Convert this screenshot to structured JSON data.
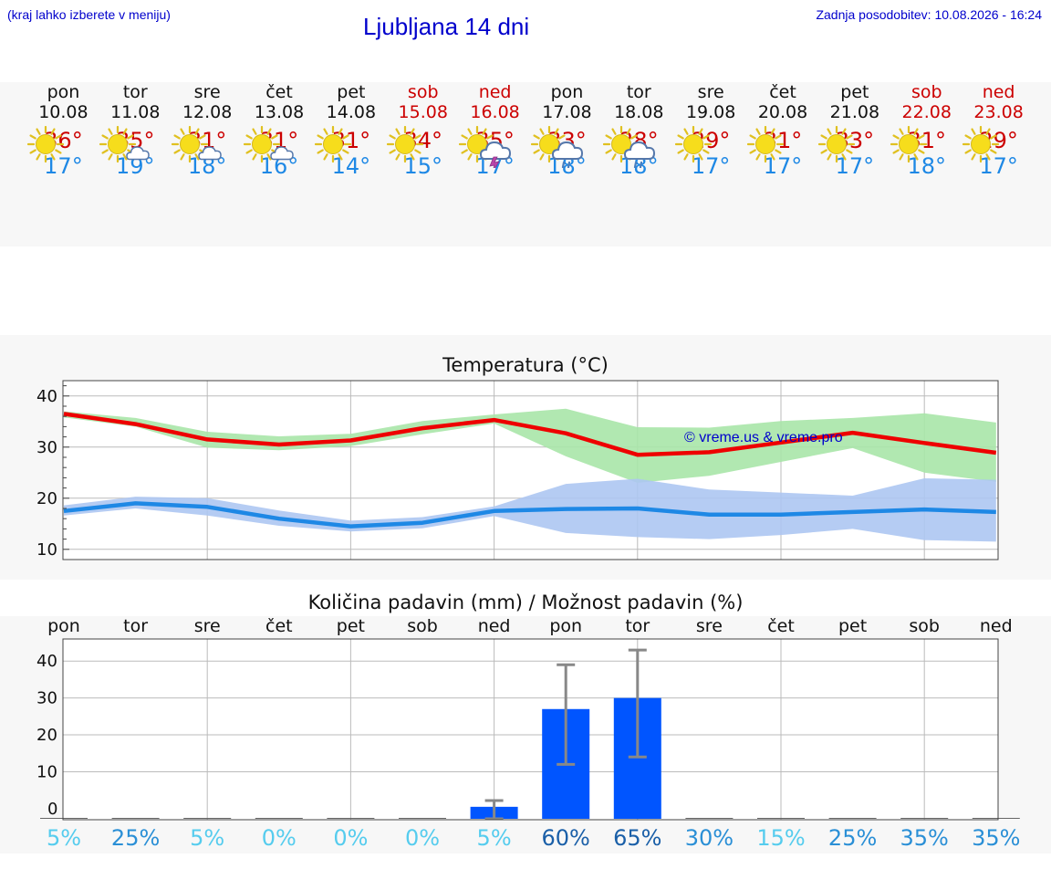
{
  "header": {
    "hint": "(kraj lahko izberete v meniju)",
    "title": "Ljubljana 14 dni",
    "updated": "Zadnja posodobitev: 10.08.2026 - 16:24"
  },
  "days": [
    {
      "name": "pon",
      "date": "10.08",
      "icon": "sun-icon",
      "tmax": "36°",
      "tmin": "17°",
      "weekend": false
    },
    {
      "name": "tor",
      "date": "11.08",
      "icon": "sun-cloud-icon",
      "tmax": "35°",
      "tmin": "19°",
      "weekend": false
    },
    {
      "name": "sre",
      "date": "12.08",
      "icon": "sun-cloud-icon",
      "tmax": "31°",
      "tmin": "18°",
      "weekend": false
    },
    {
      "name": "čet",
      "date": "13.08",
      "icon": "sun-cloud-icon",
      "tmax": "31°",
      "tmin": "16°",
      "weekend": false
    },
    {
      "name": "pet",
      "date": "14.08",
      "icon": "sun-icon",
      "tmax": "31°",
      "tmin": "14°",
      "weekend": false
    },
    {
      "name": "sob",
      "date": "15.08",
      "icon": "sun-icon",
      "tmax": "34°",
      "tmin": "15°",
      "weekend": true
    },
    {
      "name": "ned",
      "date": "16.08",
      "icon": "sun-thunder-icon",
      "tmax": "35°",
      "tmin": "17°",
      "weekend": true
    },
    {
      "name": "pon",
      "date": "17.08",
      "icon": "sun-rain-icon",
      "tmax": "33°",
      "tmin": "18°",
      "weekend": false
    },
    {
      "name": "tor",
      "date": "18.08",
      "icon": "sun-rain-icon",
      "tmax": "28°",
      "tmin": "18°",
      "weekend": false
    },
    {
      "name": "sre",
      "date": "19.08",
      "icon": "sun-icon",
      "tmax": "29°",
      "tmin": "17°",
      "weekend": false
    },
    {
      "name": "čet",
      "date": "20.08",
      "icon": "sun-icon",
      "tmax": "31°",
      "tmin": "17°",
      "weekend": false
    },
    {
      "name": "pet",
      "date": "21.08",
      "icon": "sun-icon",
      "tmax": "33°",
      "tmin": "17°",
      "weekend": false
    },
    {
      "name": "sob",
      "date": "22.08",
      "icon": "sun-icon",
      "tmax": "31°",
      "tmin": "18°",
      "weekend": true
    },
    {
      "name": "ned",
      "date": "23.08",
      "icon": "sun-icon",
      "tmax": "29°",
      "tmin": "17°",
      "weekend": true
    }
  ],
  "colors": {
    "max_line": "#ee0000",
    "max_band": "#a8e6a8",
    "min_line": "#1e88e5",
    "min_band": "#adc6f2",
    "bar": "#0055ff",
    "error": "#888888",
    "pct_low": "#55ccee",
    "pct_mid": "#2a8fd6",
    "pct_high": "#1a5fa8"
  },
  "chart_data": [
    {
      "type": "line",
      "title": "Temperatura (°C)",
      "watermark": "© vreme.us & vreme.pro",
      "ylim": [
        8,
        43
      ],
      "yticks": [
        10,
        20,
        30,
        40
      ],
      "x": [
        0,
        1,
        2,
        3,
        4,
        5,
        6,
        7,
        8,
        9,
        10,
        11,
        12,
        13
      ],
      "series": [
        {
          "values": [
            36.5,
            34.5,
            31.5,
            30.5,
            31.3,
            33.7,
            35.3,
            32.7,
            28.5,
            29.0,
            30.9,
            32.8,
            30.8,
            28.9
          ],
          "band_low": [
            35.8,
            34.0,
            29.9,
            29.4,
            30.2,
            32.5,
            34.6,
            28.2,
            23.0,
            24.4,
            27.1,
            29.8,
            25.0,
            23.2
          ],
          "band_high": [
            37.0,
            35.7,
            33.0,
            32.1,
            32.6,
            35.1,
            36.4,
            37.5,
            33.9,
            33.8,
            35.1,
            35.7,
            36.6,
            34.8
          ]
        },
        {
          "values": [
            17.5,
            19.0,
            18.3,
            16.0,
            14.5,
            15.2,
            17.5,
            17.9,
            18.0,
            16.8,
            16.8,
            17.3,
            17.8,
            17.3
          ],
          "band_low": [
            16.6,
            18.0,
            16.6,
            14.6,
            13.5,
            14.1,
            16.5,
            13.2,
            12.4,
            12.0,
            12.8,
            14.0,
            11.8,
            11.5
          ],
          "band_high": [
            18.6,
            20.3,
            20.0,
            17.6,
            15.6,
            16.3,
            18.4,
            22.8,
            23.8,
            21.7,
            21.1,
            20.5,
            23.9,
            23.6
          ]
        }
      ]
    },
    {
      "type": "bar",
      "title": "Količina padavin (mm) / Možnost padavin (%)",
      "categories": [
        "pon",
        "tor",
        "sre",
        "čet",
        "pet",
        "sob",
        "ned",
        "pon",
        "tor",
        "sre",
        "čet",
        "pet",
        "sob",
        "ned"
      ],
      "ylim": [
        -3,
        46
      ],
      "yticks": [
        0,
        10,
        20,
        30,
        40
      ],
      "values": [
        0,
        0,
        0,
        0,
        0,
        0,
        0.5,
        27,
        30,
        0,
        0,
        0,
        0,
        0
      ],
      "error_low": [
        0,
        0,
        0,
        0,
        0,
        0,
        0,
        12,
        14,
        0,
        0,
        0,
        0,
        0
      ],
      "error_high": [
        0,
        0,
        0,
        0,
        0,
        0,
        2.2,
        39,
        43,
        0,
        0,
        0,
        0,
        0
      ],
      "probability": [
        "5%",
        "25%",
        "5%",
        "0%",
        "0%",
        "0%",
        "5%",
        "60%",
        "65%",
        "30%",
        "15%",
        "25%",
        "35%",
        "35%"
      ]
    }
  ]
}
